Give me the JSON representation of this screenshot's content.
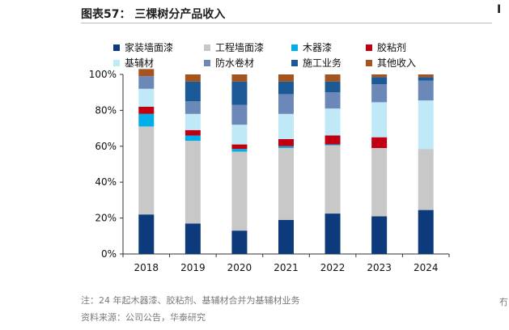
{
  "figure": {
    "title": "图表57：  三棵树分产品收入",
    "note": "注：24 年起木器漆、胶粘剂、基辅材合并为基辅材业务",
    "source": "资料来源：公司公告，华泰研究",
    "right_edge_title": "Ⅰ",
    "right_edge_note": "冇"
  },
  "chart_data": {
    "type": "bar",
    "stacked": true,
    "categories": [
      "2018",
      "2019",
      "2020",
      "2021",
      "2022",
      "2023",
      "2024"
    ],
    "ylim": [
      0,
      100
    ],
    "yticks": [
      "0%",
      "20%",
      "40%",
      "60%",
      "80%",
      "100%"
    ],
    "ytick_values": [
      0,
      20,
      40,
      60,
      80,
      100
    ],
    "grid": false,
    "legend_position": "top",
    "series": [
      {
        "name": "家装墙面漆",
        "color": "#0c3a7a",
        "values": [
          22,
          17,
          13,
          19,
          22.5,
          21,
          24.5
        ]
      },
      {
        "name": "工程墙面漆",
        "color": "#c8c8c8",
        "values": [
          49,
          46,
          44,
          40,
          38,
          38,
          34
        ]
      },
      {
        "name": "木器漆",
        "color": "#00aee8",
        "values": [
          7,
          3,
          1.5,
          1,
          0.5,
          0,
          0
        ]
      },
      {
        "name": "胶粘剂",
        "color": "#c00012",
        "values": [
          4,
          3,
          2.5,
          4,
          5,
          6,
          0
        ]
      },
      {
        "name": "基辅材",
        "color": "#bfe9f7",
        "values": [
          10,
          9,
          11,
          14,
          15,
          19.5,
          27
        ]
      },
      {
        "name": "防水卷材",
        "color": "#6b88b8",
        "values": [
          7,
          7,
          11,
          11,
          9,
          10,
          11
        ]
      },
      {
        "name": "施工业务",
        "color": "#1c5a97",
        "values": [
          0,
          11,
          13,
          7,
          6,
          4,
          2
        ]
      },
      {
        "name": "其他收入",
        "color": "#a3541f",
        "values": [
          4,
          4,
          4,
          4,
          4,
          1.5,
          1.5
        ]
      }
    ]
  }
}
